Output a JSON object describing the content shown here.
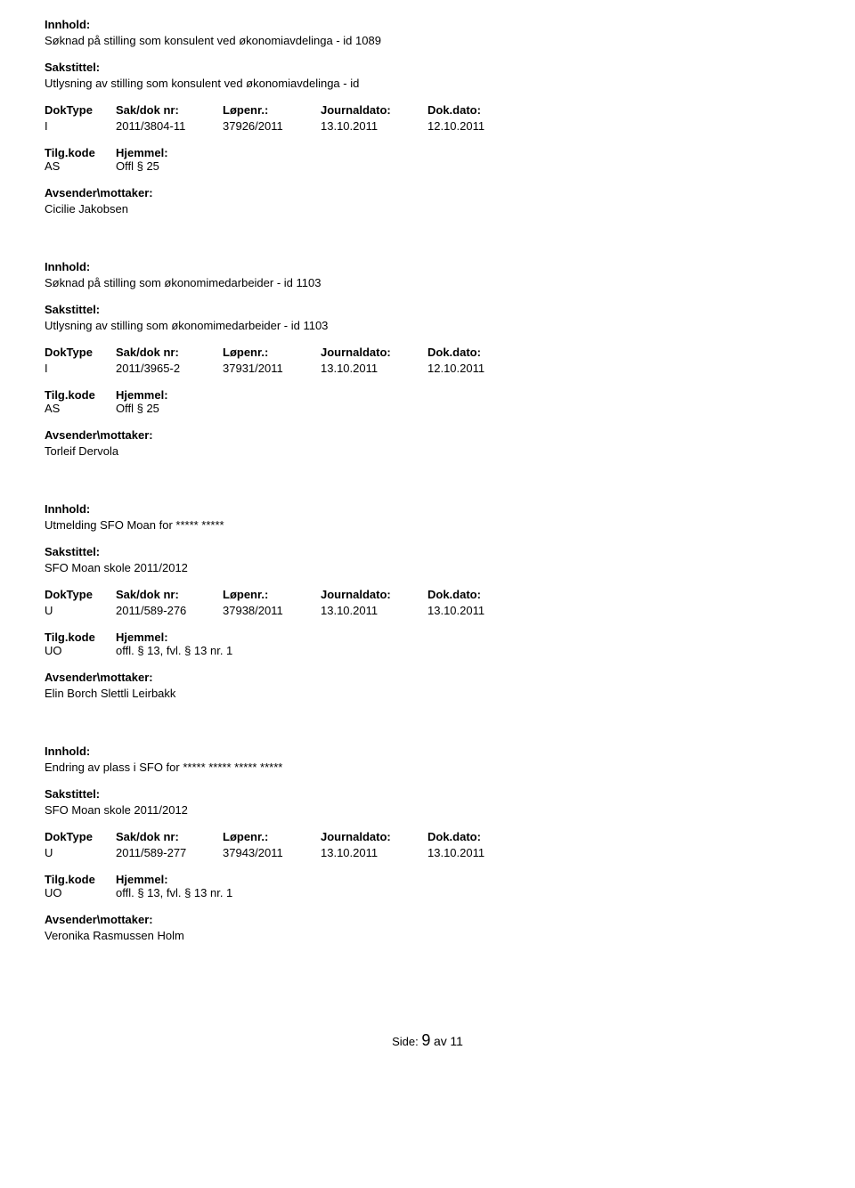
{
  "labels": {
    "innhold": "Innhold:",
    "sakstittel": "Sakstittel:",
    "doktype": "DokType",
    "saknr": "Sak/dok nr:",
    "lopenr": "Løpenr.:",
    "journaldato": "Journaldato:",
    "dokdato": "Dok.dato:",
    "tilgkode": "Tilg.kode",
    "hjemmel": "Hjemmel:",
    "avsender": "Avsender\\mottaker:"
  },
  "records": [
    {
      "innhold": "Søknad på stilling som konsulent ved økonomiavdelinga - id 1089",
      "sakstittel": "Utlysning av stilling som konsulent ved økonomiavdelinga - id",
      "doktype": "I",
      "saknr": "2011/3804-11",
      "lopenr": "37926/2011",
      "journaldato": "13.10.2011",
      "dokdato": "12.10.2011",
      "tilgkode": "AS",
      "hjemmel": "Offl § 25",
      "avsender": "Cicilie Jakobsen"
    },
    {
      "innhold": "Søknad på stilling som økonomimedarbeider - id 1103",
      "sakstittel": "Utlysning av stilling som økonomimedarbeider - id 1103",
      "doktype": "I",
      "saknr": "2011/3965-2",
      "lopenr": "37931/2011",
      "journaldato": "13.10.2011",
      "dokdato": "12.10.2011",
      "tilgkode": "AS",
      "hjemmel": "Offl § 25",
      "avsender": "Torleif Dervola"
    },
    {
      "innhold": "Utmelding SFO Moan for ***** *****",
      "sakstittel": "SFO Moan skole 2011/2012",
      "doktype": "U",
      "saknr": "2011/589-276",
      "lopenr": "37938/2011",
      "journaldato": "13.10.2011",
      "dokdato": "13.10.2011",
      "tilgkode": "UO",
      "hjemmel": "offl. § 13, fvl. § 13 nr. 1",
      "avsender": "Elin Borch Slettli Leirbakk"
    },
    {
      "innhold": "Endring av plass i SFO for ***** ***** ***** *****",
      "sakstittel": "SFO Moan skole 2011/2012",
      "doktype": "U",
      "saknr": "2011/589-277",
      "lopenr": "37943/2011",
      "journaldato": "13.10.2011",
      "dokdato": "13.10.2011",
      "tilgkode": "UO",
      "hjemmel": "offl. § 13, fvl. § 13 nr. 1",
      "avsender": "Veronika Rasmussen Holm"
    }
  ],
  "footer": {
    "side": "Side:",
    "current": "9",
    "av": "av",
    "total": "11"
  }
}
